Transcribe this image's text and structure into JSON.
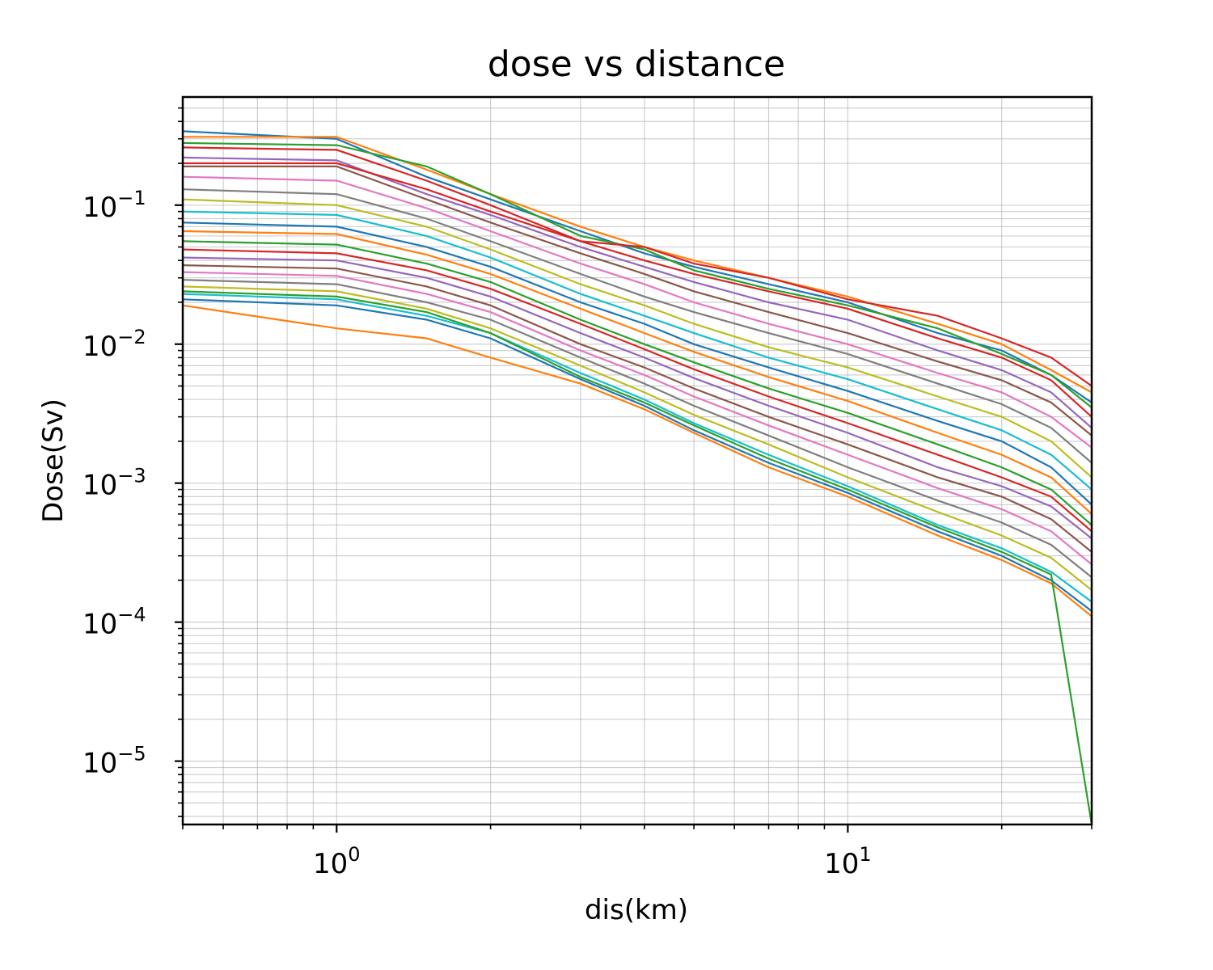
{
  "chart_data": {
    "type": "line",
    "title": "dose vs distance",
    "xlabel": "dis(km)",
    "ylabel": "Dose(Sv)",
    "xscale": "log",
    "yscale": "log",
    "xlim": [
      0.5,
      30
    ],
    "ylim": [
      3.5e-06,
      0.6
    ],
    "grid": "major and minor",
    "legend": "none",
    "x_ticks": [
      {
        "value": 1,
        "base": "10",
        "exp": "0"
      },
      {
        "value": 10,
        "base": "10",
        "exp": "1"
      }
    ],
    "y_ticks": [
      {
        "value": 0.1,
        "base": "10",
        "exp": "−1"
      },
      {
        "value": 0.01,
        "base": "10",
        "exp": "−2"
      },
      {
        "value": 0.001,
        "base": "10",
        "exp": "−3"
      },
      {
        "value": 0.0001,
        "base": "10",
        "exp": "−4"
      },
      {
        "value": 1e-05,
        "base": "10",
        "exp": "−5"
      }
    ],
    "x": [
      0.5,
      1.0,
      1.5,
      2.0,
      3.0,
      4.0,
      5.0,
      7.0,
      10.0,
      15.0,
      20.0,
      25.0,
      30.0
    ],
    "series_colors": [
      "#1f77b4",
      "#ff7f0e",
      "#2ca02c",
      "#d62728",
      "#9467bd",
      "#8c564b",
      "#e377c2",
      "#7f7f7f",
      "#bcbd22",
      "#17becf"
    ],
    "series": [
      {
        "values": [
          0.34,
          0.3,
          0.16,
          0.11,
          0.065,
          0.045,
          0.036,
          0.027,
          0.02,
          0.012,
          0.009,
          0.006,
          0.0038
        ]
      },
      {
        "values": [
          0.31,
          0.31,
          0.18,
          0.12,
          0.07,
          0.05,
          0.04,
          0.03,
          0.022,
          0.014,
          0.01,
          0.0065,
          0.0045
        ]
      },
      {
        "values": [
          0.28,
          0.27,
          0.19,
          0.12,
          0.06,
          0.048,
          0.034,
          0.025,
          0.019,
          0.013,
          0.0085,
          0.006,
          0.0035
        ]
      },
      {
        "values": [
          0.26,
          0.25,
          0.15,
          0.1,
          0.055,
          0.04,
          0.032,
          0.024,
          0.018,
          0.011,
          0.008,
          0.0055,
          0.003
        ]
      },
      {
        "values": [
          0.22,
          0.21,
          0.12,
          0.085,
          0.05,
          0.036,
          0.028,
          0.02,
          0.015,
          0.009,
          0.0065,
          0.0045,
          0.0025
        ]
      },
      {
        "values": [
          0.19,
          0.19,
          0.11,
          0.075,
          0.045,
          0.032,
          0.024,
          0.017,
          0.012,
          0.0075,
          0.0055,
          0.0038,
          0.0022
        ]
      },
      {
        "values": [
          0.16,
          0.15,
          0.095,
          0.065,
          0.038,
          0.027,
          0.02,
          0.014,
          0.01,
          0.0062,
          0.0045,
          0.003,
          0.0018
        ]
      },
      {
        "values": [
          0.13,
          0.12,
          0.08,
          0.055,
          0.032,
          0.022,
          0.017,
          0.012,
          0.0085,
          0.0052,
          0.0037,
          0.0025,
          0.0014
        ]
      },
      {
        "values": [
          0.11,
          0.1,
          0.07,
          0.048,
          0.027,
          0.019,
          0.014,
          0.0095,
          0.0068,
          0.0042,
          0.003,
          0.002,
          0.0011
        ]
      },
      {
        "values": [
          0.09,
          0.085,
          0.06,
          0.042,
          0.023,
          0.016,
          0.012,
          0.008,
          0.0056,
          0.0034,
          0.0024,
          0.0016,
          0.0009
        ]
      },
      {
        "values": [
          0.075,
          0.07,
          0.05,
          0.036,
          0.02,
          0.014,
          0.01,
          0.0068,
          0.0046,
          0.0028,
          0.002,
          0.0013,
          0.0007
        ]
      },
      {
        "values": [
          0.065,
          0.062,
          0.044,
          0.032,
          0.018,
          0.012,
          0.0088,
          0.0058,
          0.0039,
          0.0023,
          0.0016,
          0.0011,
          0.0006
        ]
      },
      {
        "values": [
          0.055,
          0.052,
          0.038,
          0.028,
          0.015,
          0.01,
          0.0074,
          0.0048,
          0.0032,
          0.0019,
          0.0013,
          0.0009,
          0.0005
        ]
      },
      {
        "values": [
          0.048,
          0.045,
          0.034,
          0.025,
          0.014,
          0.0092,
          0.0066,
          0.0042,
          0.0027,
          0.0016,
          0.0011,
          0.0008,
          0.00045
        ]
      },
      {
        "values": [
          0.042,
          0.04,
          0.03,
          0.022,
          0.012,
          0.008,
          0.0057,
          0.0036,
          0.0023,
          0.0013,
          0.00095,
          0.00068,
          0.0004
        ]
      },
      {
        "values": [
          0.037,
          0.035,
          0.026,
          0.019,
          0.01,
          0.0068,
          0.0048,
          0.003,
          0.0019,
          0.0011,
          0.0008,
          0.00055,
          0.00032
        ]
      },
      {
        "values": [
          0.033,
          0.031,
          0.023,
          0.017,
          0.009,
          0.006,
          0.0042,
          0.0026,
          0.0016,
          0.00092,
          0.00065,
          0.00045,
          0.00026
        ]
      },
      {
        "values": [
          0.029,
          0.027,
          0.02,
          0.015,
          0.008,
          0.0052,
          0.0036,
          0.0022,
          0.0013,
          0.00075,
          0.00052,
          0.00036,
          0.00021
        ]
      },
      {
        "values": [
          0.026,
          0.024,
          0.018,
          0.013,
          0.007,
          0.0045,
          0.0031,
          0.0019,
          0.0011,
          0.00062,
          0.00042,
          0.00029,
          0.00017
        ]
      },
      {
        "values": [
          0.023,
          0.021,
          0.016,
          0.012,
          0.0062,
          0.004,
          0.0027,
          0.0016,
          0.00095,
          0.0005,
          0.00034,
          0.00023,
          0.00014
        ]
      },
      {
        "values": [
          0.021,
          0.019,
          0.015,
          0.011,
          0.0056,
          0.0036,
          0.0024,
          0.0014,
          0.00085,
          0.00045,
          0.0003,
          0.0002,
          0.00012
        ]
      },
      {
        "values": [
          0.019,
          0.013,
          0.011,
          0.008,
          0.0052,
          0.0034,
          0.0023,
          0.0013,
          0.0008,
          0.00042,
          0.00028,
          0.00019,
          0.00011
        ]
      },
      {
        "values": [
          0.024,
          0.022,
          0.017,
          0.012,
          0.0058,
          0.0038,
          0.0026,
          0.0015,
          0.0009,
          0.00048,
          0.00032,
          0.00022,
          3.5e-06
        ]
      },
      {
        "values": [
          0.2,
          0.2,
          0.13,
          0.09,
          0.055,
          0.05,
          0.038,
          0.03,
          0.021,
          0.016,
          0.011,
          0.008,
          0.005
        ]
      }
    ]
  }
}
